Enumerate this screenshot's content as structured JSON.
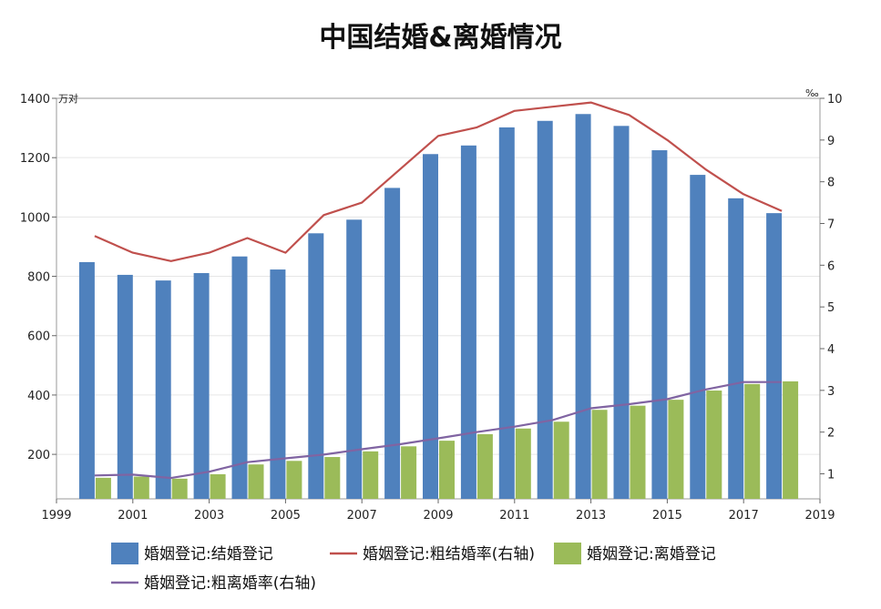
{
  "chart_data": {
    "type": "bar",
    "title": "中国结婚&离婚情况",
    "left_unit": "万对",
    "right_unit": "‰",
    "x_ticks": [
      "1999",
      "2001",
      "2003",
      "2005",
      "2007",
      "2009",
      "2011",
      "2013",
      "2015",
      "2017",
      "2019"
    ],
    "x_range": [
      1999,
      2019
    ],
    "y_left_ticks": [
      "200",
      "400",
      "600",
      "800",
      "1000",
      "1200",
      "1400"
    ],
    "y_left_range": [
      50,
      1400
    ],
    "y_right_ticks": [
      "1",
      "2",
      "3",
      "4",
      "5",
      "6",
      "7",
      "8",
      "9",
      "10"
    ],
    "y_right_range": [
      0.4,
      10
    ],
    "years": [
      2000,
      2001,
      2002,
      2003,
      2004,
      2005,
      2006,
      2007,
      2008,
      2009,
      2010,
      2011,
      2012,
      2013,
      2014,
      2015,
      2016,
      2017,
      2018
    ],
    "series": [
      {
        "name": "婚姻登记:结婚登记",
        "kind": "bar",
        "axis": "left",
        "color": "#4f81bd",
        "values": [
          848,
          805,
          786,
          811,
          867,
          823,
          945,
          991,
          1098,
          1212,
          1241,
          1302,
          1324,
          1347,
          1307,
          1225,
          1142,
          1063,
          1013
        ]
      },
      {
        "name": "婚姻登记:粗结婚率(右轴)",
        "kind": "line",
        "axis": "right",
        "color": "#c0504d",
        "values": [
          6.7,
          6.3,
          6.1,
          6.3,
          6.65,
          6.3,
          7.2,
          7.5,
          8.3,
          9.1,
          9.3,
          9.7,
          9.8,
          9.9,
          9.6,
          9.0,
          8.3,
          7.7,
          7.3
        ]
      },
      {
        "name": "婚姻登记:离婚登记",
        "kind": "bar",
        "axis": "left",
        "color": "#9bbb59",
        "values": [
          121,
          125,
          118,
          133,
          166,
          178,
          191,
          210,
          227,
          246,
          268,
          287,
          310,
          350,
          364,
          384,
          415,
          437,
          446
        ]
      },
      {
        "name": "婚姻登记:粗离婚率(右轴)",
        "kind": "line",
        "axis": "right",
        "color": "#8064a2",
        "values": [
          0.96,
          0.98,
          0.9,
          1.05,
          1.28,
          1.37,
          1.46,
          1.59,
          1.71,
          1.85,
          2.0,
          2.13,
          2.29,
          2.57,
          2.67,
          2.79,
          3.02,
          3.2,
          3.2
        ]
      }
    ]
  }
}
